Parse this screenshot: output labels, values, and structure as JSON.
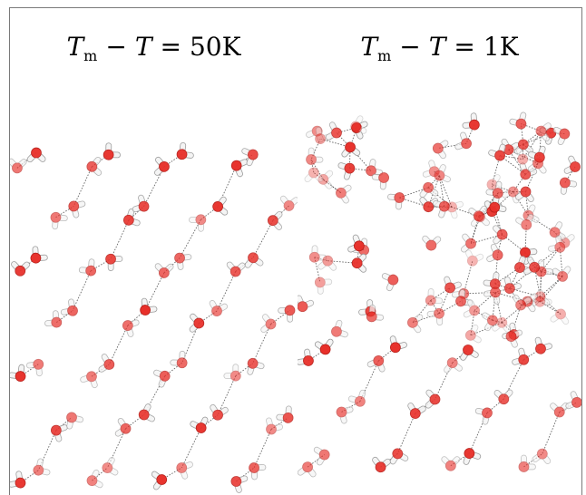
{
  "panels": [
    {
      "id": "left",
      "label": {
        "symbol": "T",
        "subscript": "m",
        "operator": "−",
        "symbol2": "T",
        "equals": "=",
        "value": "50K"
      },
      "structure": "ordered-ice-lattice"
    },
    {
      "id": "right",
      "label": {
        "symbol": "T",
        "subscript": "m",
        "operator": "−",
        "symbol2": "T",
        "equals": "=",
        "value": "1K"
      },
      "structure": "disordered-surface-over-ice-lattice"
    }
  ],
  "colors": {
    "oxygen": "#e8302a",
    "hydrogen": "#f4f4f4",
    "bond_shadow": "#9a9a9a",
    "hbond": "#333333",
    "border": "#7a7a7a"
  }
}
